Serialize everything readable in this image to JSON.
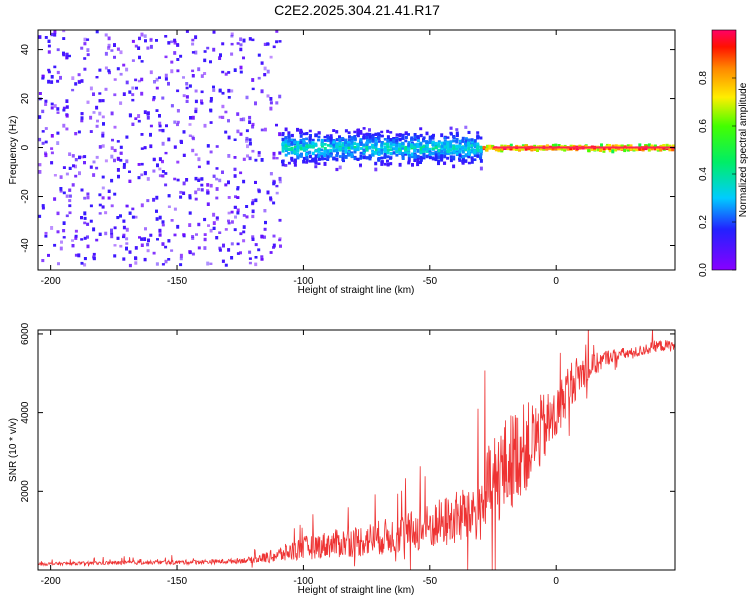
{
  "figure_title": "C2E2.2025.304.21.41.R17",
  "chart_data": [
    {
      "type": "heatmap",
      "title": "C2E2.2025.304.21.41.R17",
      "xlabel": "Height of straight line (km)",
      "ylabel": "Frequency (Hz)",
      "xlim": [
        -205,
        47
      ],
      "ylim": [
        -50,
        48
      ],
      "x_ticks": [
        -200,
        -150,
        -100,
        -50,
        0
      ],
      "x_tick_labels": [
        "-200",
        "-150",
        "-100",
        "-50",
        "0"
      ],
      "y_ticks": [
        -40,
        -20,
        0,
        20,
        40
      ],
      "y_tick_labels": [
        "-40",
        "-20",
        "0",
        "20",
        "40"
      ],
      "grid": false,
      "colorbar": {
        "label": "Normalized spectral amplitude",
        "range": [
          0,
          1
        ],
        "ticks": [
          0.0,
          0.2,
          0.4,
          0.6,
          0.8
        ],
        "tick_labels": [
          "0.0",
          "0.2",
          "0.4",
          "0.6",
          "0.8"
        ],
        "colormap": "rainbow (purple → blue → cyan → green → yellow → orange → red → magenta)"
      },
      "description_regions": [
        {
          "x_from": -205,
          "x_to": -110,
          "freq_spread_hz": 48,
          "amplitude": 0.15
        },
        {
          "x_from": -110,
          "x_to": -30,
          "freq_spread_hz": 12,
          "amplitude": 0.35
        },
        {
          "x_from": -30,
          "x_to": 47,
          "freq_spread_hz": 2,
          "amplitude": 0.9
        }
      ]
    },
    {
      "type": "line",
      "xlabel": "Height of straight line (km)",
      "ylabel": "SNR (10 * v/v)",
      "xlim": [
        -205,
        47
      ],
      "ylim": [
        0,
        6100
      ],
      "x_ticks": [
        -200,
        -150,
        -100,
        -50,
        0
      ],
      "x_tick_labels": [
        "-200",
        "-150",
        "-100",
        "-50",
        "0"
      ],
      "y_ticks": [
        2000,
        4000,
        6000
      ],
      "y_tick_labels": [
        "2000",
        "4000",
        "6000"
      ],
      "color": "#ee3333",
      "series": [
        {
          "name": "SNR",
          "x": [
            -205,
            -190,
            -175,
            -160,
            -145,
            -130,
            -120,
            -110,
            -100,
            -90,
            -80,
            -70,
            -60,
            -50,
            -40,
            -30,
            -25,
            -20,
            -15,
            -10,
            -5,
            0,
            5,
            10,
            15,
            20,
            25,
            30,
            35,
            40,
            47
          ],
          "y": [
            150,
            170,
            180,
            190,
            200,
            220,
            260,
            380,
            560,
            650,
            720,
            820,
            930,
            1100,
            1300,
            1600,
            2300,
            2600,
            3000,
            3200,
            3600,
            3900,
            4700,
            5000,
            5200,
            5400,
            5500,
            5500,
            5600,
            5700,
            5700
          ],
          "noise_amplitude": [
            40,
            40,
            50,
            50,
            60,
            60,
            80,
            200,
            300,
            350,
            400,
            450,
            500,
            600,
            700,
            900,
            1200,
            1300,
            1200,
            1100,
            900,
            700,
            600,
            500,
            300,
            200,
            150,
            150,
            150,
            150,
            150
          ]
        }
      ]
    }
  ]
}
